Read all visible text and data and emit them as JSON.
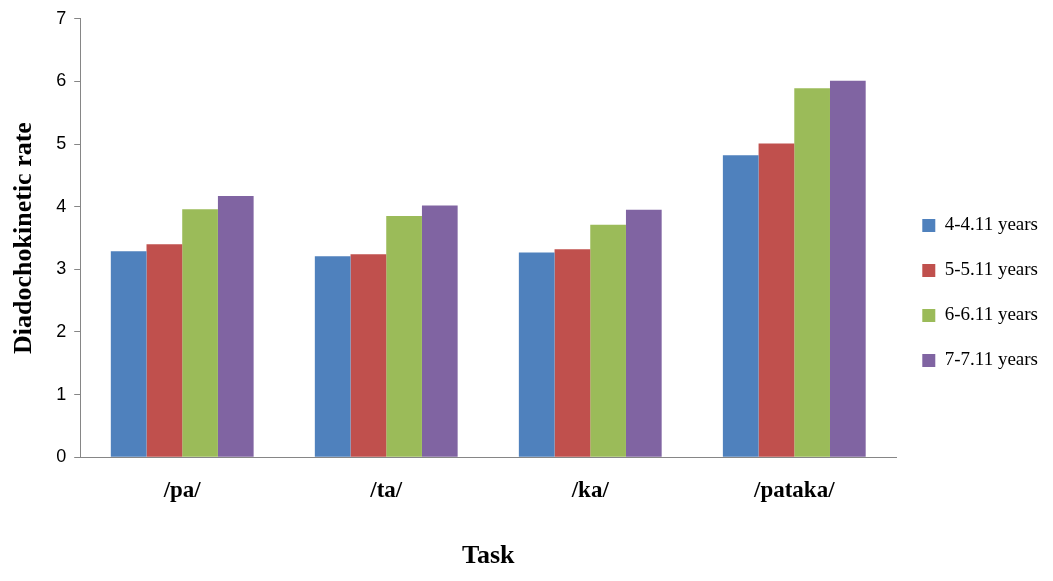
{
  "chart_data": {
    "type": "bar",
    "xlabel": "Task",
    "ylabel": "Diadochokinetic rate",
    "categories": [
      "/pa/",
      "/ta/",
      "/ka/",
      "/pataka/"
    ],
    "series": [
      {
        "name": "4-4.11 years",
        "color": "#4f81bd",
        "values": [
          3.29,
          3.21,
          3.27,
          4.82
        ]
      },
      {
        "name": "5-5.11 years",
        "color": "#c0504d",
        "values": [
          3.4,
          3.24,
          3.32,
          5.01
        ]
      },
      {
        "name": "6-6.11 years",
        "color": "#9bbb59",
        "values": [
          3.96,
          3.85,
          3.71,
          5.89
        ]
      },
      {
        "name": "7-7.11 years",
        "color": "#8064a2",
        "values": [
          4.17,
          4.02,
          3.95,
          6.01
        ]
      }
    ],
    "ylim": [
      0,
      7
    ],
    "yticks": [
      0,
      1,
      2,
      3,
      4,
      5,
      6,
      7
    ],
    "grid": false,
    "legend": "right"
  }
}
